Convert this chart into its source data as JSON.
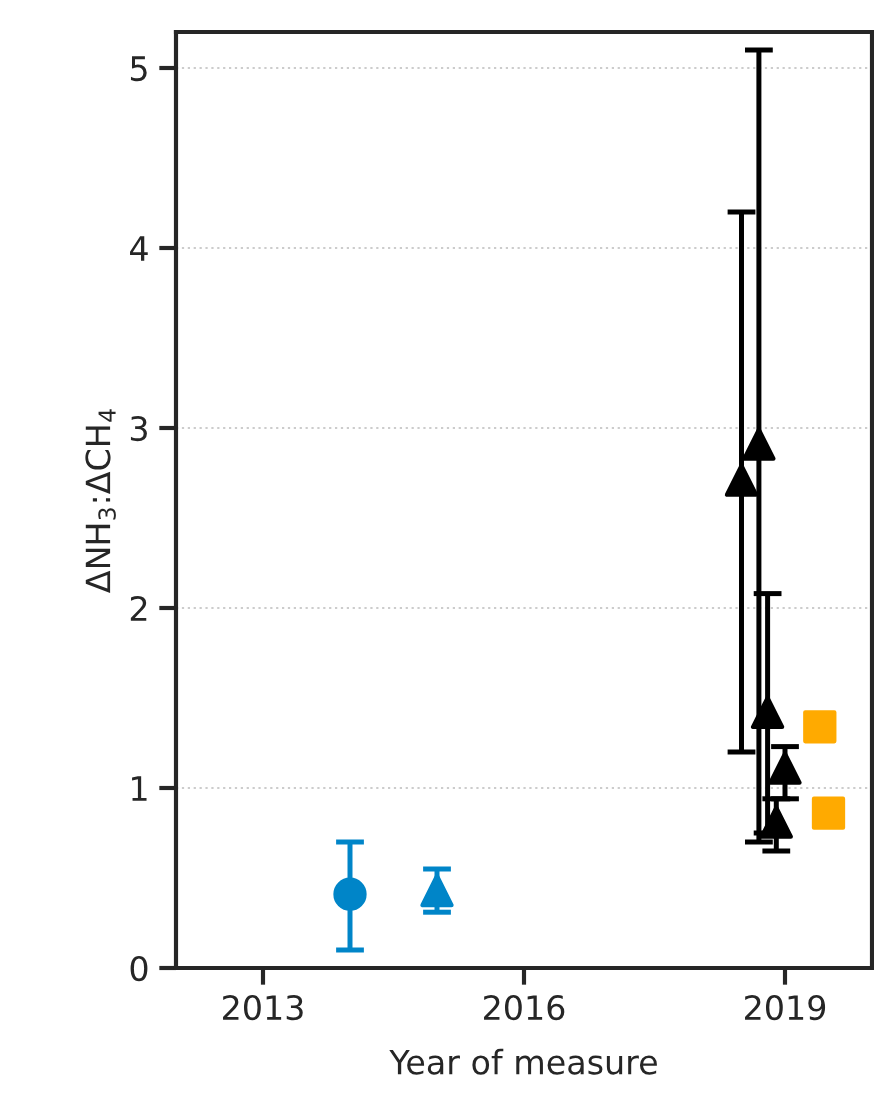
{
  "chart_data": {
    "type": "scatter",
    "xlabel": "Year of measure",
    "ylabel": "ΔNH$_{3}$:ΔCH$_{4}$",
    "xlim": [
      2012,
      2020
    ],
    "xticks": [
      2013,
      2016,
      2019
    ],
    "ylim": [
      0,
      5.2
    ],
    "yticks": [
      0,
      1,
      2,
      3,
      4,
      5
    ],
    "grid": "y",
    "series": [
      {
        "color": "#0085c8",
        "marker": "circle",
        "x": [
          2014.0
        ],
        "values": [
          0.41
        ],
        "errors": [
          [
            0.1,
            0.7
          ]
        ]
      },
      {
        "color": "#0085c8",
        "marker": "triangle",
        "x": [
          2015.0
        ],
        "values": [
          0.43
        ],
        "errors": [
          [
            0.31,
            0.55
          ]
        ]
      },
      {
        "color": "#000000",
        "marker": "triangle",
        "x": [
          2018.5,
          2018.7
        ],
        "values": [
          2.71,
          2.91
        ],
        "errors": [
          [
            1.2,
            4.2
          ],
          [
            0.7,
            5.1
          ]
        ]
      },
      {
        "color": "#000000",
        "marker": "triangle",
        "x": [
          2018.8,
          2019.0,
          2018.9
        ],
        "values": [
          1.42,
          1.11,
          0.81
        ],
        "errors": [
          [
            0.75,
            2.08
          ],
          [
            0.94,
            1.23
          ],
          [
            0.65,
            0.94
          ]
        ]
      },
      {
        "color": "#ffaa00",
        "marker": "square",
        "x": [
          2019.4
        ],
        "values": [
          1.34
        ]
      },
      {
        "color": "#ffaa00",
        "marker": "square",
        "x": [
          2019.5
        ],
        "values": [
          0.86
        ]
      }
    ]
  }
}
